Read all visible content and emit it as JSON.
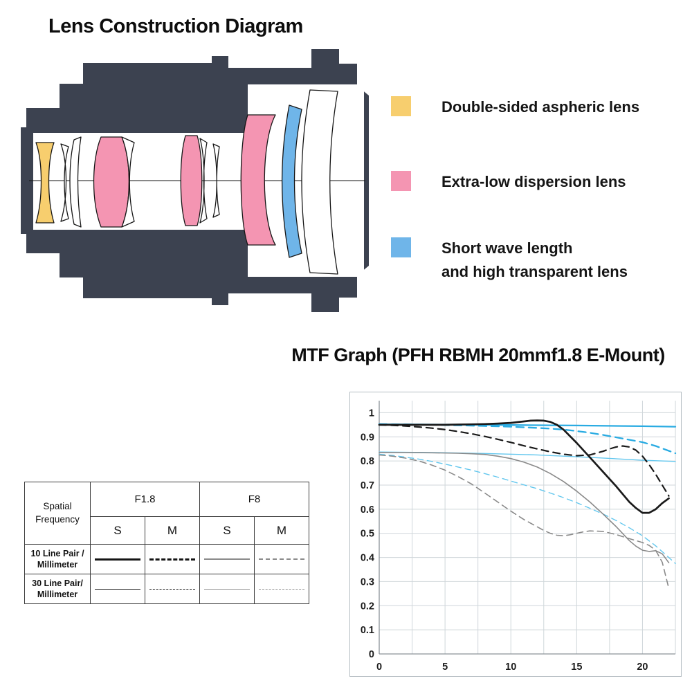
{
  "lens_diagram": {
    "title": "Lens Construction Diagram",
    "body_color": "#3C4250",
    "legend": [
      {
        "color": "#F7CE6E",
        "lines": [
          "Double-sided aspheric lens",
          ""
        ]
      },
      {
        "color": "#F495B2",
        "lines": [
          "Extra-low dispersion lens",
          ""
        ]
      },
      {
        "color": "#6FB5E9",
        "lines": [
          "Short wave length",
          "and high transparent lens"
        ]
      }
    ]
  },
  "mtf_table": {
    "corner": [
      "Spatial",
      "Frequency"
    ],
    "groups": [
      "F1.8",
      "F8"
    ],
    "subcols": [
      "S",
      "M",
      "S",
      "M"
    ],
    "rows": [
      {
        "label": [
          "10 Line Pair /",
          "Millimeter"
        ],
        "samples": [
          {
            "color": "#141414",
            "width": 3,
            "style": "solid"
          },
          {
            "color": "#141414",
            "width": 3,
            "style": "dashed"
          },
          {
            "color": "#8a8a8a",
            "width": 2,
            "style": "solid"
          },
          {
            "color": "#8a8a8a",
            "width": 2,
            "style": "dashed"
          }
        ]
      },
      {
        "label": [
          "30 Line Pair/",
          "Millimeter"
        ],
        "samples": [
          {
            "color": "#2b2b2b",
            "width": 1.5,
            "style": "solid"
          },
          {
            "color": "#2b2b2b",
            "width": 1.5,
            "style": "dashed"
          },
          {
            "color": "#9a9a9a",
            "width": 1.5,
            "style": "solid"
          },
          {
            "color": "#9a9a9a",
            "width": 1.5,
            "style": "dashed"
          }
        ]
      }
    ]
  },
  "chart_data": {
    "type": "line",
    "title": "MTF Graph (PFH RBMH 20mmf1.8 E-Mount)",
    "xlabel": "",
    "ylabel": "",
    "xlim": [
      0,
      22.5
    ],
    "ylim": [
      0,
      1.05
    ],
    "x_ticks": [
      0,
      5,
      10,
      15,
      20
    ],
    "y_ticks": [
      0,
      0.1,
      0.2,
      0.3,
      0.4,
      0.5,
      0.6,
      0.7,
      0.8,
      0.9,
      1
    ],
    "x_grid_step": 2.5,
    "y_grid_step": 0.1,
    "grid": true,
    "legend_position": "external-table",
    "series": [
      {
        "name": "F8 M - 30 Line Pair/Millimeter",
        "color": "#63C7EE",
        "width": 1.4,
        "dash": "8,6",
        "x": [
          0,
          1,
          2,
          3,
          4,
          5,
          6,
          7,
          8,
          9,
          10,
          11,
          12,
          13,
          14,
          15,
          16,
          17,
          18,
          19,
          20,
          21,
          22,
          22.5
        ],
        "y": [
          0.828,
          0.823,
          0.816,
          0.808,
          0.798,
          0.787,
          0.775,
          0.762,
          0.748,
          0.733,
          0.717,
          0.701,
          0.685,
          0.667,
          0.648,
          0.627,
          0.604,
          0.58,
          0.553,
          0.523,
          0.49,
          0.448,
          0.4,
          0.375
        ]
      },
      {
        "name": "F8 S - 30 Line Pair/Millimeter",
        "color": "#63C7EE",
        "width": 1.4,
        "dash": "",
        "x": [
          0,
          4,
          8,
          12,
          16,
          20,
          22.5
        ],
        "y": [
          0.837,
          0.835,
          0.831,
          0.825,
          0.815,
          0.803,
          0.798
        ]
      },
      {
        "name": "F8 M - 10 Line Pair/Millimeter",
        "color": "#8a8a8a",
        "width": 1.6,
        "dash": "9,6",
        "x": [
          0,
          1,
          2,
          3,
          4,
          5,
          6,
          7,
          8,
          9,
          10,
          11,
          12,
          12.5,
          13,
          13.5,
          14,
          14.5,
          15,
          15.5,
          16,
          17,
          18,
          19,
          20,
          20.5,
          21,
          21.5,
          22
        ],
        "y": [
          0.825,
          0.82,
          0.812,
          0.8,
          0.783,
          0.762,
          0.735,
          0.705,
          0.668,
          0.63,
          0.592,
          0.557,
          0.527,
          0.512,
          0.5,
          0.492,
          0.49,
          0.494,
          0.5,
          0.506,
          0.51,
          0.508,
          0.495,
          0.478,
          0.462,
          0.45,
          0.43,
          0.38,
          0.272
        ]
      },
      {
        "name": "F8 S - 10 Line Pair/Millimeter",
        "color": "#8a8a8a",
        "width": 1.6,
        "dash": "",
        "x": [
          0,
          2,
          4,
          6,
          7,
          8,
          9,
          10,
          11,
          12,
          13,
          14,
          15,
          16,
          17,
          18,
          19,
          19.5,
          20,
          20.5,
          21,
          21.5,
          22
        ],
        "y": [
          0.835,
          0.835,
          0.834,
          0.832,
          0.83,
          0.827,
          0.82,
          0.81,
          0.795,
          0.775,
          0.748,
          0.715,
          0.675,
          0.63,
          0.58,
          0.528,
          0.47,
          0.447,
          0.43,
          0.425,
          0.428,
          0.415,
          0.378
        ]
      },
      {
        "name": "F1.8 M - 30 Line Pair/Millimeter",
        "color": "#29ABE2",
        "width": 2.3,
        "dash": "11,7",
        "x": [
          0,
          2,
          4,
          6,
          8,
          10,
          12,
          13,
          14,
          15,
          16,
          17,
          18,
          19,
          20,
          21,
          22,
          22.5
        ],
        "y": [
          0.953,
          0.952,
          0.95,
          0.948,
          0.945,
          0.942,
          0.937,
          0.934,
          0.93,
          0.924,
          0.917,
          0.908,
          0.898,
          0.888,
          0.878,
          0.862,
          0.842,
          0.832
        ]
      },
      {
        "name": "F1.8 S - 30 Line Pair/Millimeter",
        "color": "#29ABE2",
        "width": 2.3,
        "dash": "",
        "x": [
          0,
          5,
          10,
          15,
          20,
          22.5
        ],
        "y": [
          0.952,
          0.951,
          0.949,
          0.947,
          0.944,
          0.942
        ]
      },
      {
        "name": "F1.8 M - 10 Line Pair/Millimeter",
        "color": "#1a1a1a",
        "width": 2.2,
        "dash": "10,7",
        "x": [
          0,
          1,
          2,
          3,
          4,
          5,
          6,
          7,
          8,
          9,
          10,
          11,
          12,
          13,
          14,
          15,
          16,
          17,
          17.5,
          18,
          18.5,
          19,
          19.5,
          20,
          20.5,
          21,
          21.5,
          22
        ],
        "y": [
          0.95,
          0.948,
          0.945,
          0.941,
          0.936,
          0.93,
          0.922,
          0.913,
          0.902,
          0.89,
          0.877,
          0.863,
          0.85,
          0.838,
          0.828,
          0.822,
          0.825,
          0.84,
          0.85,
          0.858,
          0.862,
          0.858,
          0.845,
          0.82,
          0.785,
          0.745,
          0.7,
          0.655
        ]
      },
      {
        "name": "F1.8 S - 10 Line Pair/Millimeter",
        "color": "#1a1a1a",
        "width": 2.7,
        "dash": "",
        "x": [
          0,
          1,
          2,
          3,
          4,
          5,
          6,
          7,
          8,
          9,
          10,
          10.5,
          11,
          11.5,
          12,
          12.5,
          13,
          13.5,
          14,
          15,
          16,
          17,
          18,
          19,
          19.5,
          20,
          20.5,
          21,
          21.5,
          22
        ],
        "y": [
          0.95,
          0.95,
          0.95,
          0.95,
          0.95,
          0.95,
          0.951,
          0.952,
          0.953,
          0.955,
          0.958,
          0.961,
          0.964,
          0.967,
          0.968,
          0.967,
          0.962,
          0.95,
          0.93,
          0.875,
          0.815,
          0.755,
          0.695,
          0.63,
          0.605,
          0.585,
          0.585,
          0.6,
          0.625,
          0.645
        ]
      }
    ]
  }
}
